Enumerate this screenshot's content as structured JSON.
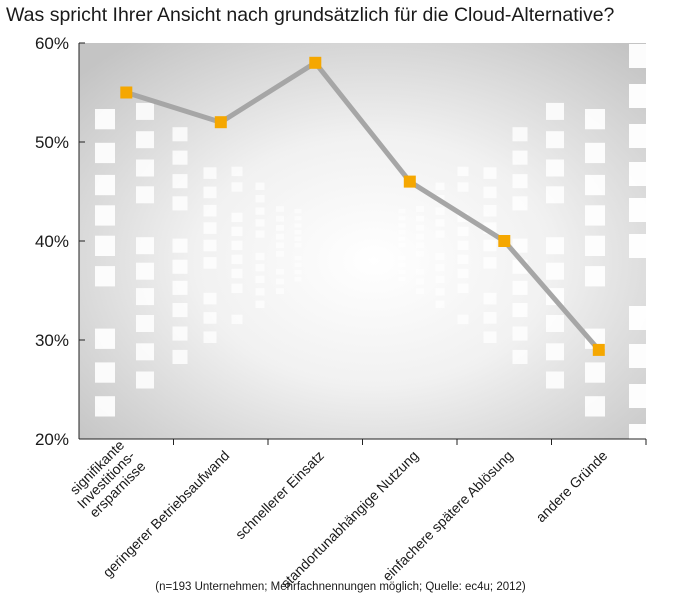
{
  "chart_data": {
    "type": "line",
    "title": "Was spricht Ihrer Ansicht nach grundsätzlich für die Cloud-Alternative?",
    "categories": [
      "signifikante Investitions-ersparnisse",
      "geringerer Betriebsaufwand",
      "schnellerer Einsatz",
      "standortunabhängige Nutzung",
      "einfachere spätere Ablösung",
      "andere Gründe"
    ],
    "category_lines": [
      [
        "signifikante",
        "Investitions-",
        "ersparnisse"
      ],
      [
        "geringerer Betriebsaufwand"
      ],
      [
        "schnellerer Einsatz"
      ],
      [
        "standortunabhängige Nutzung"
      ],
      [
        "einfachere spätere Ablösung"
      ],
      [
        "andere Gründe"
      ]
    ],
    "series": [
      {
        "values": [
          55,
          52,
          58,
          46,
          40,
          29
        ]
      }
    ],
    "ylim": [
      20,
      60
    ],
    "yticks": [
      20,
      30,
      40,
      50,
      60
    ],
    "ytick_labels": [
      "20%",
      "30%",
      "40%",
      "50%",
      "60%"
    ],
    "line_color": "#a6a6a6",
    "marker_color": "#f5a700",
    "grid": false,
    "footnote": "(n=193 Unternehmen; Mehrfachnennungen möglich; Quelle: ec4u; 2012)"
  }
}
